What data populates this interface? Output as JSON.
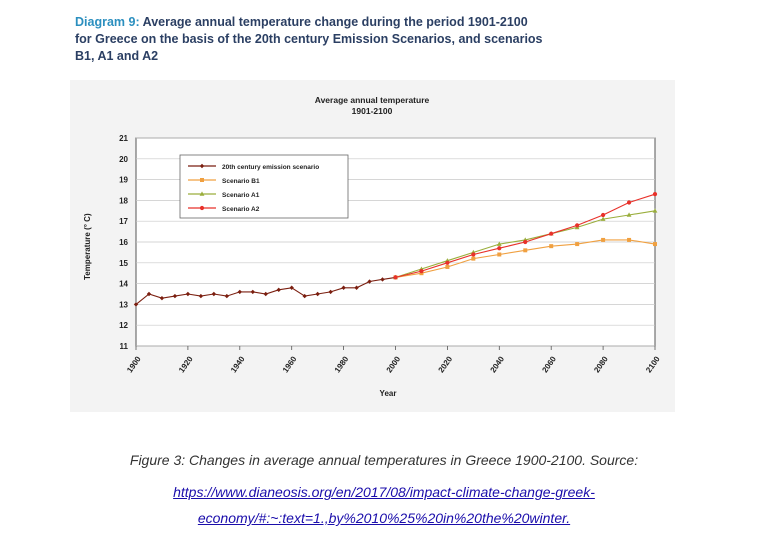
{
  "diagram": {
    "label": "Diagram 9:",
    "title": "Average annual temperature change during the period 1901-2100 for Greece on the basis of the 20th century Emission Scenarios, and scenarios B1, A1 and A2"
  },
  "caption": {
    "text": "Figure 3: Changes in average annual temperatures in Greece 1900-2100. Source:",
    "link_line1": "https://www.dianeosis.org/en/2017/08/impact-climate-change-greek-",
    "link_line2": "economy/#:~:text=1.,by%2010%25%20in%20the%20winter."
  },
  "chart_data": {
    "type": "line",
    "title": "Average annual temperature",
    "subtitle": "1901-2100",
    "xlabel": "Year",
    "ylabel": "Temperature (° C)",
    "xlim": [
      1900,
      2100
    ],
    "ylim": [
      11,
      21
    ],
    "xticks": [
      1900,
      1920,
      1940,
      1960,
      1980,
      2000,
      2020,
      2040,
      2060,
      2080,
      2100
    ],
    "yticks": [
      11,
      12,
      13,
      14,
      15,
      16,
      17,
      18,
      19,
      20,
      21
    ],
    "grid": "horizontal",
    "legend_position": "top-left",
    "series": [
      {
        "name": "20th century emission scenario",
        "color": "#7b1f10",
        "marker": "diamond",
        "x": [
          1900,
          1905,
          1910,
          1915,
          1920,
          1925,
          1930,
          1935,
          1940,
          1945,
          1950,
          1955,
          1960,
          1965,
          1970,
          1975,
          1980,
          1985,
          1990,
          1995,
          2000
        ],
        "y": [
          13.0,
          13.5,
          13.3,
          13.4,
          13.5,
          13.4,
          13.5,
          13.4,
          13.6,
          13.6,
          13.5,
          13.7,
          13.8,
          13.4,
          13.5,
          13.6,
          13.8,
          13.8,
          14.1,
          14.2,
          14.3
        ]
      },
      {
        "name": "Scenario B1",
        "color": "#f0a040",
        "marker": "square",
        "x": [
          2000,
          2010,
          2020,
          2030,
          2040,
          2050,
          2060,
          2070,
          2080,
          2090,
          2100
        ],
        "y": [
          14.3,
          14.5,
          14.8,
          15.2,
          15.4,
          15.6,
          15.8,
          15.9,
          16.1,
          16.1,
          15.9
        ]
      },
      {
        "name": "Scenario A1",
        "color": "#9aae3c",
        "marker": "triangle",
        "x": [
          2000,
          2010,
          2020,
          2030,
          2040,
          2050,
          2060,
          2070,
          2080,
          2090,
          2100
        ],
        "y": [
          14.3,
          14.7,
          15.1,
          15.5,
          15.9,
          16.1,
          16.4,
          16.7,
          17.1,
          17.3,
          17.5
        ]
      },
      {
        "name": "Scenario A2",
        "color": "#e8312a",
        "marker": "star",
        "x": [
          2000,
          2010,
          2020,
          2030,
          2040,
          2050,
          2060,
          2070,
          2080,
          2090,
          2100
        ],
        "y": [
          14.3,
          14.6,
          15.0,
          15.4,
          15.7,
          16.0,
          16.4,
          16.8,
          17.3,
          17.9,
          18.3
        ]
      }
    ]
  }
}
